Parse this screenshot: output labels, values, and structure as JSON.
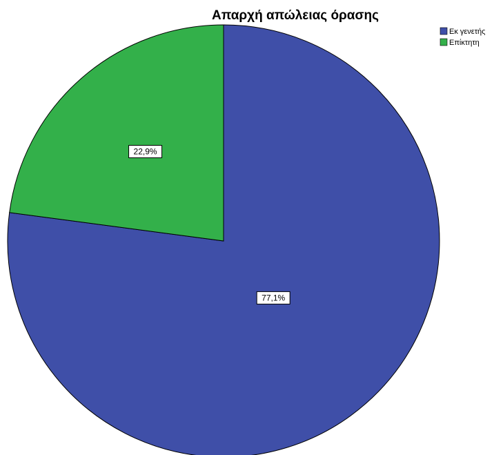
{
  "chart_data": {
    "type": "pie",
    "title": "Απαρχή απώλειας όρασης",
    "categories": [
      "Εκ γενετής",
      "Επίκτητη"
    ],
    "values": [
      77.1,
      22.9
    ],
    "data_labels": [
      "77,1%",
      "22,9%"
    ],
    "colors": [
      "#3f4fa8",
      "#33b04a"
    ],
    "start": "12 o'clock",
    "direction": "clockwise",
    "legend": "top-right",
    "legend_entries": [
      "Εκ γενετής",
      "Επίκτητη"
    ]
  }
}
